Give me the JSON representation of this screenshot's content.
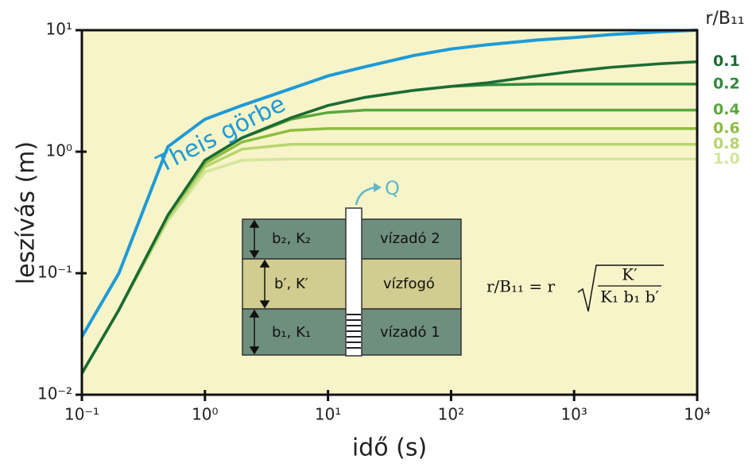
{
  "chart_data": {
    "type": "line",
    "x_label": "idő (s)",
    "y_label": "leszívás (m)",
    "log_x": true,
    "log_y": true,
    "xlim": [
      0.1,
      10000
    ],
    "ylim": [
      0.01,
      10
    ],
    "xticks": [
      {
        "value": 0.1,
        "label": "10⁻¹"
      },
      {
        "value": 1,
        "label": "10⁰"
      },
      {
        "value": 10,
        "label": "10¹"
      },
      {
        "value": 100,
        "label": "10²"
      },
      {
        "value": 1000,
        "label": "10³"
      },
      {
        "value": 10000,
        "label": "10⁴"
      }
    ],
    "yticks": [
      {
        "value": 0.01,
        "label": "10⁻²"
      },
      {
        "value": 0.1,
        "label": "10⁻¹"
      },
      {
        "value": 1,
        "label": "10⁰"
      },
      {
        "value": 10,
        "label": "10¹"
      }
    ],
    "legend_title": "r/B₁₁",
    "x": [
      0.1,
      0.2,
      0.5,
      1,
      2,
      5,
      10,
      20,
      50,
      100,
      200,
      500,
      1000,
      2000,
      5000,
      10000
    ],
    "series": [
      {
        "name": "Theis görbe",
        "color": "#1f9ad6",
        "values": [
          0.03,
          0.1,
          1.1,
          1.85,
          2.4,
          3.3,
          4.2,
          5.0,
          6.2,
          7.0,
          7.6,
          8.3,
          8.7,
          9.2,
          9.7,
          10
        ]
      },
      {
        "name": "0.1",
        "color": "#1c6b34",
        "values": [
          0.015,
          0.05,
          0.3,
          0.85,
          1.3,
          1.9,
          2.4,
          2.8,
          3.2,
          3.45,
          3.7,
          4.2,
          4.6,
          4.95,
          5.3,
          5.5
        ]
      },
      {
        "name": "0.2",
        "color": "#2f8a3c",
        "values": [
          0.015,
          0.05,
          0.3,
          0.85,
          1.3,
          1.9,
          2.4,
          2.8,
          3.2,
          3.45,
          3.55,
          3.6,
          3.6,
          3.6,
          3.6,
          3.6
        ]
      },
      {
        "name": "0.4",
        "color": "#5aa83c",
        "values": [
          0.015,
          0.05,
          0.3,
          0.85,
          1.3,
          1.85,
          2.1,
          2.2,
          2.2,
          2.2,
          2.2,
          2.2,
          2.2,
          2.2,
          2.2,
          2.2
        ]
      },
      {
        "name": "0.6",
        "color": "#8dbd3f",
        "values": [
          0.015,
          0.05,
          0.3,
          0.8,
          1.2,
          1.5,
          1.55,
          1.55,
          1.55,
          1.55,
          1.55,
          1.55,
          1.55,
          1.55,
          1.55,
          1.55
        ]
      },
      {
        "name": "0.8",
        "color": "#b7d56c",
        "values": [
          0.015,
          0.05,
          0.28,
          0.75,
          1.05,
          1.15,
          1.15,
          1.15,
          1.15,
          1.15,
          1.15,
          1.15,
          1.15,
          1.15,
          1.15,
          1.15
        ]
      },
      {
        "name": "1.0",
        "color": "#d3e59c",
        "values": [
          0.015,
          0.05,
          0.27,
          0.68,
          0.85,
          0.87,
          0.87,
          0.87,
          0.87,
          0.87,
          0.87,
          0.87,
          0.87,
          0.87,
          0.87,
          0.87
        ]
      }
    ],
    "inset": {
      "discharge": "Q",
      "layers": [
        {
          "params": "b₂, K₂",
          "name": "vízadó 2"
        },
        {
          "params": "b′, K′",
          "name": "vízfogó"
        },
        {
          "params": "b₁, K₁",
          "name": "vízadó 1"
        }
      ],
      "formula": {
        "lhs": "r/B₁₁ = r",
        "numerator": "K′",
        "denominator": "K₁ b₁ b′"
      }
    }
  }
}
